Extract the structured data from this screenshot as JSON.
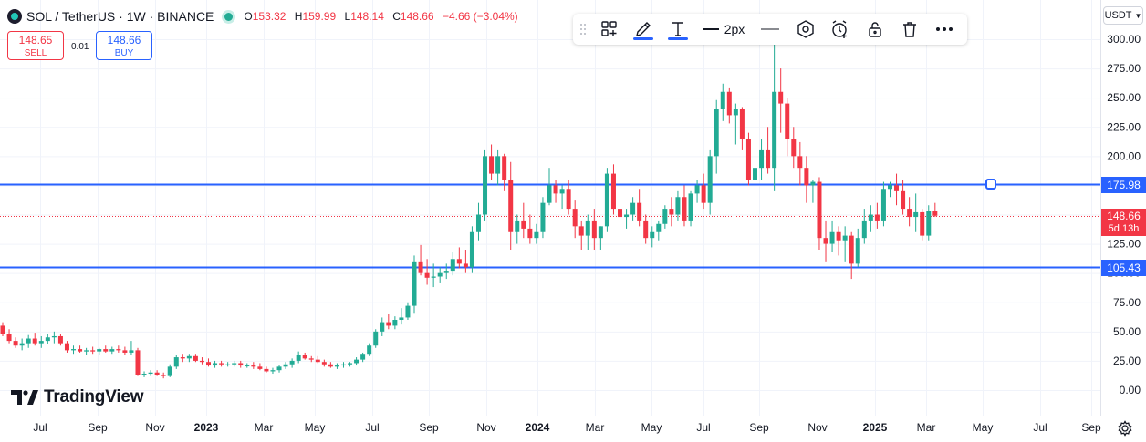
{
  "header": {
    "title": "SOL / TetherUS · 1W · BINANCE",
    "o_label": "O",
    "o_value": "153.32",
    "h_label": "H",
    "h_value": "159.99",
    "l_label": "L",
    "l_value": "148.14",
    "c_label": "C",
    "c_value": "148.66",
    "change": "−4.66 (−3.04%)"
  },
  "trade": {
    "sell_price": "148.65",
    "sell_label": "SELL",
    "spread": "0.01",
    "buy_price": "148.66",
    "buy_label": "BUY"
  },
  "toolbar": {
    "items": [
      "drag-handle-icon",
      "add-to-favorites-icon",
      "pencil-icon",
      "text-icon",
      "line-style-icon",
      "line-width-icon",
      "line-icon",
      "object-tree-icon",
      "alert-icon",
      "lock-icon",
      "trash-icon",
      "more-icon"
    ],
    "width_label": "2px"
  },
  "price_scale": {
    "currency": "USDT",
    "tick_labels": [
      "300.00",
      "275.00",
      "250.00",
      "225.00",
      "200.00",
      "175.00",
      "150.00",
      "125.00",
      "100.00",
      "75.00",
      "50.00",
      "25.00",
      "0.00"
    ],
    "current_price": "148.66",
    "countdown": "5d 13h"
  },
  "levels": [
    {
      "price": 175.98,
      "label": "175.98"
    },
    {
      "price": 105.43,
      "label": "105.43"
    }
  ],
  "time_axis": {
    "labels": [
      "Jul",
      "Sep",
      "Nov",
      "2023",
      "Mar",
      "May",
      "Jul",
      "Sep",
      "Nov",
      "2024",
      "Mar",
      "May",
      "Jul",
      "Sep",
      "Nov",
      "2025",
      "Mar",
      "May",
      "Jul",
      "Sep"
    ],
    "bold": [
      "2023",
      "2024",
      "2025"
    ]
  },
  "brand": {
    "name": "TradingView"
  },
  "colors": {
    "up": "#22ab94",
    "down": "#f23645",
    "level": "#2962ff",
    "grid": "#f0f3fa",
    "text": "#131722"
  },
  "chart_data": {
    "type": "candlestick",
    "interval": "1W",
    "ylim": [
      -16,
      306
    ],
    "yticks": [
      0,
      25,
      50,
      75,
      100,
      125,
      150,
      175,
      200,
      225,
      250,
      275,
      300
    ],
    "horizontal_lines": [
      175.98,
      105.43
    ],
    "current_price": 148.66,
    "candles": [
      [
        55,
        58,
        46,
        48
      ],
      [
        48,
        52,
        40,
        42
      ],
      [
        42,
        45,
        36,
        38
      ],
      [
        38,
        44,
        34,
        40
      ],
      [
        40,
        47,
        36,
        44
      ],
      [
        44,
        49,
        38,
        40
      ],
      [
        40,
        46,
        36,
        42
      ],
      [
        42,
        48,
        39,
        45
      ],
      [
        45,
        50,
        40,
        46
      ],
      [
        46,
        48,
        38,
        40
      ],
      [
        40,
        42,
        32,
        34
      ],
      [
        34,
        38,
        31,
        35
      ],
      [
        35,
        38,
        32,
        33
      ],
      [
        33,
        36,
        30,
        34
      ],
      [
        34,
        37,
        31,
        33
      ],
      [
        33,
        36,
        30,
        35
      ],
      [
        35,
        38,
        32,
        33
      ],
      [
        33,
        37,
        31,
        35
      ],
      [
        35,
        38,
        32,
        34
      ],
      [
        34,
        37,
        30,
        32
      ],
      [
        32,
        42,
        30,
        34
      ],
      [
        34,
        36,
        12,
        13
      ],
      [
        13,
        16,
        11,
        14
      ],
      [
        14,
        17,
        12,
        15
      ],
      [
        15,
        17,
        12,
        13
      ],
      [
        13,
        15,
        10,
        12
      ],
      [
        12,
        22,
        11,
        20
      ],
      [
        20,
        30,
        18,
        28
      ],
      [
        28,
        31,
        24,
        27
      ],
      [
        27,
        31,
        24,
        29
      ],
      [
        29,
        31,
        24,
        25
      ],
      [
        25,
        28,
        22,
        24
      ],
      [
        24,
        27,
        20,
        21
      ],
      [
        21,
        25,
        19,
        23
      ],
      [
        23,
        25,
        20,
        22
      ],
      [
        22,
        24,
        20,
        22
      ],
      [
        22,
        25,
        20,
        23
      ],
      [
        23,
        25,
        19,
        21
      ],
      [
        21,
        23,
        19,
        21
      ],
      [
        21,
        24,
        18,
        20
      ],
      [
        20,
        23,
        17,
        18
      ],
      [
        18,
        20,
        15,
        16
      ],
      [
        16,
        19,
        14,
        17
      ],
      [
        17,
        21,
        15,
        20
      ],
      [
        20,
        24,
        18,
        22
      ],
      [
        22,
        27,
        19,
        25
      ],
      [
        25,
        33,
        23,
        30
      ],
      [
        30,
        32,
        26,
        27
      ],
      [
        27,
        29,
        24,
        26
      ],
      [
        26,
        29,
        23,
        24
      ],
      [
        24,
        26,
        20,
        22
      ],
      [
        22,
        24,
        19,
        20
      ],
      [
        20,
        23,
        18,
        21
      ],
      [
        21,
        24,
        19,
        22
      ],
      [
        22,
        24,
        20,
        23
      ],
      [
        23,
        28,
        21,
        26
      ],
      [
        26,
        32,
        24,
        31
      ],
      [
        31,
        40,
        29,
        38
      ],
      [
        38,
        52,
        36,
        50
      ],
      [
        50,
        62,
        46,
        58
      ],
      [
        58,
        65,
        52,
        55
      ],
      [
        55,
        63,
        52,
        60
      ],
      [
        60,
        70,
        56,
        62
      ],
      [
        62,
        75,
        60,
        72
      ],
      [
        72,
        115,
        66,
        110
      ],
      [
        110,
        124,
        98,
        100
      ],
      [
        100,
        112,
        90,
        96
      ],
      [
        96,
        108,
        88,
        97
      ],
      [
        97,
        105,
        92,
        100
      ],
      [
        100,
        108,
        95,
        102
      ],
      [
        102,
        118,
        98,
        112
      ],
      [
        112,
        122,
        104,
        108
      ],
      [
        108,
        120,
        100,
        105
      ],
      [
        105,
        140,
        100,
        135
      ],
      [
        135,
        160,
        128,
        150
      ],
      [
        150,
        205,
        145,
        200
      ],
      [
        200,
        210,
        180,
        185
      ],
      [
        185,
        205,
        175,
        200
      ],
      [
        200,
        202,
        170,
        180
      ],
      [
        180,
        195,
        120,
        135
      ],
      [
        135,
        150,
        125,
        145
      ],
      [
        145,
        160,
        130,
        138
      ],
      [
        138,
        150,
        125,
        130
      ],
      [
        130,
        142,
        125,
        135
      ],
      [
        135,
        165,
        130,
        160
      ],
      [
        160,
        190,
        158,
        175
      ],
      [
        175,
        180,
        160,
        168
      ],
      [
        168,
        175,
        155,
        172
      ],
      [
        172,
        180,
        150,
        155
      ],
      [
        155,
        162,
        130,
        140
      ],
      [
        140,
        145,
        120,
        132
      ],
      [
        132,
        150,
        120,
        145
      ],
      [
        145,
        155,
        120,
        130
      ],
      [
        130,
        140,
        120,
        140
      ],
      [
        140,
        190,
        135,
        185
      ],
      [
        185,
        193,
        150,
        155
      ],
      [
        155,
        162,
        112,
        148
      ],
      [
        148,
        155,
        138,
        150
      ],
      [
        150,
        165,
        145,
        160
      ],
      [
        160,
        172,
        140,
        145
      ],
      [
        145,
        150,
        125,
        130
      ],
      [
        130,
        140,
        122,
        135
      ],
      [
        135,
        145,
        128,
        142
      ],
      [
        142,
        158,
        138,
        155
      ],
      [
        155,
        165,
        140,
        150
      ],
      [
        150,
        170,
        145,
        165
      ],
      [
        165,
        175,
        140,
        145
      ],
      [
        145,
        170,
        140,
        168
      ],
      [
        168,
        180,
        160,
        175
      ],
      [
        175,
        185,
        155,
        160
      ],
      [
        160,
        205,
        150,
        200
      ],
      [
        200,
        248,
        185,
        240
      ],
      [
        240,
        262,
        230,
        255
      ],
      [
        255,
        258,
        228,
        235
      ],
      [
        235,
        245,
        210,
        240
      ],
      [
        240,
        242,
        205,
        215
      ],
      [
        215,
        220,
        175,
        180
      ],
      [
        180,
        200,
        175,
        190
      ],
      [
        190,
        215,
        180,
        205
      ],
      [
        205,
        225,
        185,
        190
      ],
      [
        190,
        300,
        170,
        255
      ],
      [
        255,
        275,
        220,
        245
      ],
      [
        245,
        250,
        200,
        215
      ],
      [
        215,
        225,
        190,
        200
      ],
      [
        200,
        212,
        175,
        190
      ],
      [
        190,
        200,
        160,
        175
      ],
      [
        175,
        180,
        160,
        178
      ],
      [
        178,
        182,
        120,
        130
      ],
      [
        130,
        145,
        110,
        125
      ],
      [
        125,
        145,
        118,
        135
      ],
      [
        135,
        140,
        115,
        128
      ],
      [
        128,
        140,
        110,
        132
      ],
      [
        132,
        135,
        95,
        108
      ],
      [
        108,
        138,
        105,
        130
      ],
      [
        130,
        155,
        125,
        145
      ],
      [
        145,
        158,
        135,
        150
      ],
      [
        150,
        160,
        138,
        145
      ],
      [
        145,
        178,
        140,
        172
      ],
      [
        172,
        178,
        165,
        175
      ],
      [
        175,
        185,
        158,
        170
      ],
      [
        170,
        180,
        150,
        155
      ],
      [
        155,
        165,
        140,
        148
      ],
      [
        148,
        168,
        135,
        152
      ],
      [
        152,
        155,
        128,
        132
      ],
      [
        132,
        158,
        128,
        153
      ],
      [
        153,
        160,
        148,
        149
      ]
    ]
  }
}
